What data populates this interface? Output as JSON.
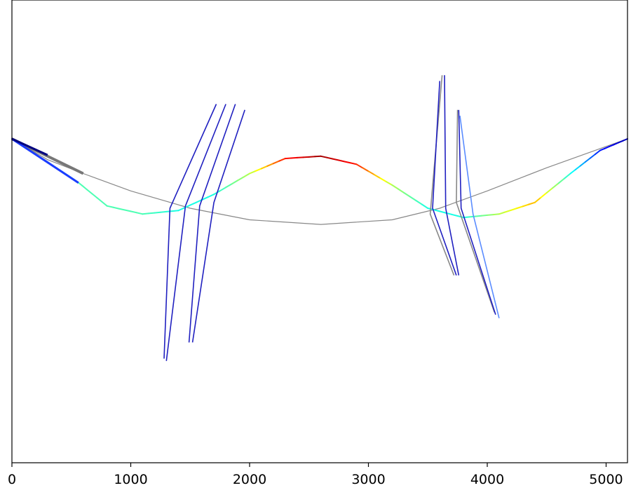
{
  "chart_data": {
    "type": "line",
    "title": "",
    "xlabel": "",
    "ylabel": "",
    "xlim": [
      0,
      5180
    ],
    "ylim": [
      -2.8,
      1.2
    ],
    "grid": false,
    "legend": "none",
    "x_ticks": [
      0,
      1000,
      2000,
      3000,
      4000,
      5000
    ],
    "x_tick_labels": [
      "0",
      "1000",
      "2000",
      "3000",
      "4000",
      "5000"
    ],
    "y_ticks_shown": false,
    "series": [
      {
        "kind": "reference-curve",
        "color": "#888888",
        "x": [
          0,
          300,
          600,
          1000,
          1500,
          2000,
          2600,
          3200,
          3600,
          4000,
          4500,
          5180
        ],
        "y": [
          0.0,
          -0.18,
          -0.3,
          -0.45,
          -0.6,
          -0.7,
          -0.74,
          -0.7,
          -0.6,
          -0.45,
          -0.25,
          0.0
        ]
      },
      {
        "kind": "colored-deformed-curve",
        "colormap": "jet",
        "x": [
          0,
          300,
          550,
          800,
          1100,
          1400,
          1700,
          2000,
          2300,
          2600,
          2900,
          3200,
          3500,
          3800,
          4100,
          4400,
          4700,
          4950,
          5180
        ],
        "y": [
          0.0,
          -0.2,
          -0.37,
          -0.58,
          -0.65,
          -0.62,
          -0.48,
          -0.3,
          -0.17,
          -0.15,
          -0.22,
          -0.4,
          -0.6,
          -0.68,
          -0.65,
          -0.55,
          -0.3,
          -0.1,
          0.0
        ],
        "color_values": [
          0.05,
          0.2,
          0.45,
          0.45,
          0.45,
          0.4,
          0.4,
          0.55,
          0.85,
          0.97,
          0.85,
          0.55,
          0.4,
          0.4,
          0.55,
          0.7,
          0.4,
          0.15,
          0.05
        ]
      },
      {
        "kind": "grey-stub",
        "color": "#777777",
        "x": [
          0,
          600
        ],
        "y": [
          0.0,
          -0.3
        ]
      },
      {
        "kind": "blue-stub",
        "color": "#1a3cff",
        "x": [
          0,
          560
        ],
        "y": [
          0.0,
          -0.38
        ]
      },
      {
        "kind": "navy-stub",
        "color": "#000080",
        "x": [
          0,
          300
        ],
        "y": [
          0.0,
          -0.14
        ]
      }
    ],
    "blade_sets": [
      {
        "location": "left",
        "blades": [
          {
            "color": "#2020c0",
            "x": [
              1720,
              1330,
              1280
            ],
            "y": [
              0.3,
              -0.6,
              -1.9
            ]
          },
          {
            "color": "#2020c0",
            "x": [
              1800,
              1460,
              1300
            ],
            "y": [
              0.3,
              -0.58,
              -1.92
            ]
          },
          {
            "color": "#2020c0",
            "x": [
              1880,
              1580,
              1490
            ],
            "y": [
              0.3,
              -0.58,
              -1.76
            ]
          },
          {
            "color": "#2020c0",
            "x": [
              1960,
              1700,
              1520
            ],
            "y": [
              0.25,
              -0.55,
              -1.76
            ]
          }
        ]
      },
      {
        "location": "right",
        "blades": [
          {
            "color": "#888888",
            "x": [
              3620,
              3520,
              3720
            ],
            "y": [
              0.55,
              -0.65,
              -1.18
            ]
          },
          {
            "color": "#2020c0",
            "x": [
              3600,
              3540,
              3740
            ],
            "y": [
              0.5,
              -0.6,
              -1.18
            ]
          },
          {
            "color": "#2020c0",
            "x": [
              3640,
              3650,
              3760
            ],
            "y": [
              0.55,
              -0.6,
              -1.18
            ]
          },
          {
            "color": "#888888",
            "x": [
              3750,
              3740,
              4060
            ],
            "y": [
              0.25,
              -0.55,
              -1.5
            ]
          },
          {
            "color": "#2020c0",
            "x": [
              3760,
              3780,
              4070
            ],
            "y": [
              0.25,
              -0.6,
              -1.52
            ]
          },
          {
            "color": "#5a8cff",
            "x": [
              3770,
              3880,
              4100
            ],
            "y": [
              0.2,
              -0.65,
              -1.55
            ]
          }
        ]
      }
    ]
  }
}
